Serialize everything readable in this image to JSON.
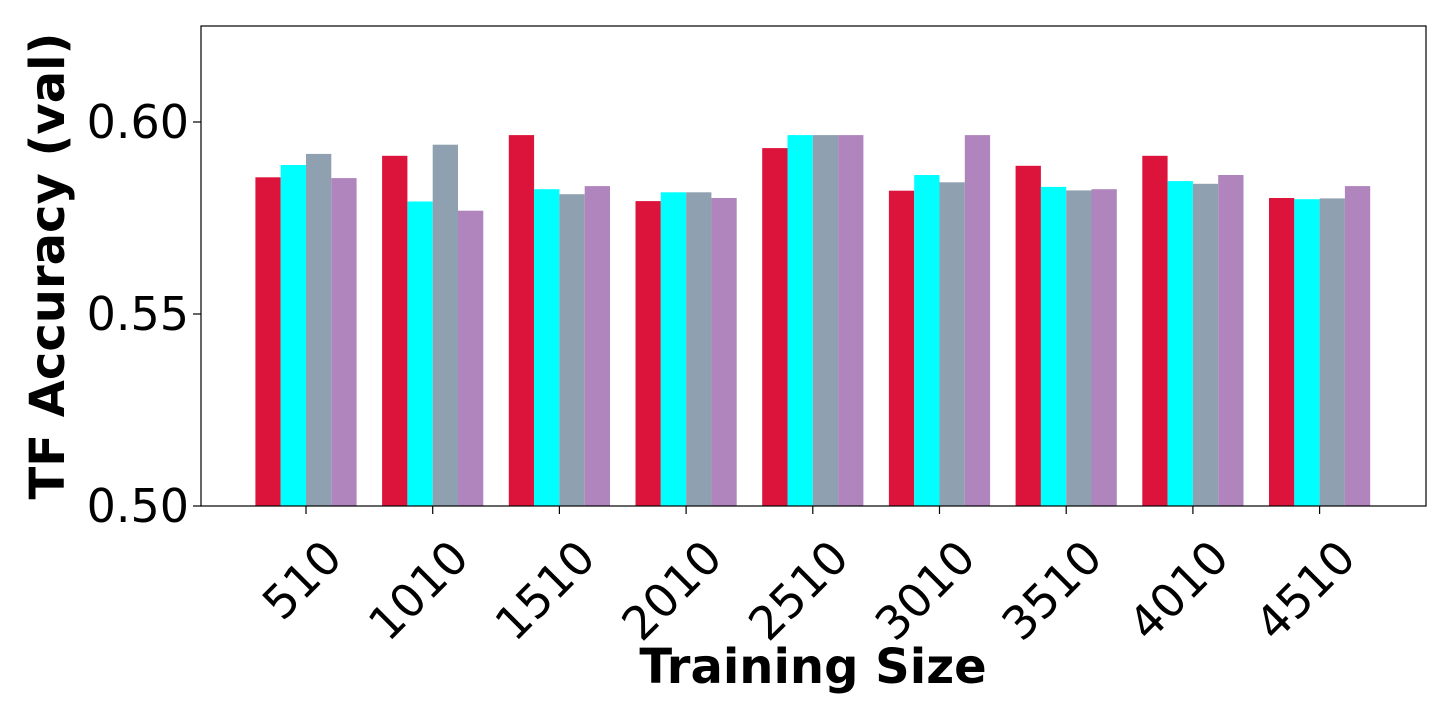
{
  "chart_data": {
    "type": "bar",
    "title": "",
    "xlabel": "Training Size",
    "ylabel": "TF Accuracy (val)",
    "ylim": [
      0.5,
      0.625
    ],
    "yticks": [
      "0.50",
      "0.55",
      "0.60"
    ],
    "ytick_values": [
      0.5,
      0.55,
      0.6
    ],
    "categories": [
      "510",
      "1010",
      "1510",
      "2010",
      "2510",
      "3010",
      "3510",
      "4010",
      "4510"
    ],
    "grid": false,
    "legend": "none",
    "series": [
      {
        "color": "#dc143c",
        "values": [
          0.5856,
          0.5912,
          0.5966,
          0.5794,
          0.5932,
          0.5821,
          0.5886,
          0.5912,
          0.5802
        ]
      },
      {
        "color": "#00ffff",
        "values": [
          0.5888,
          0.5793,
          0.5825,
          0.5817,
          0.5966,
          0.5862,
          0.5831,
          0.5846,
          0.5799
        ]
      },
      {
        "color": "#8fa1b0",
        "values": [
          0.5917,
          0.5941,
          0.5812,
          0.5817,
          0.5966,
          0.5843,
          0.5822,
          0.5839,
          0.5801
        ]
      },
      {
        "color": "#b084bd",
        "values": [
          0.5854,
          0.5769,
          0.5833,
          0.5802,
          0.5966,
          0.5966,
          0.5825,
          0.5862,
          0.5833
        ]
      }
    ]
  }
}
